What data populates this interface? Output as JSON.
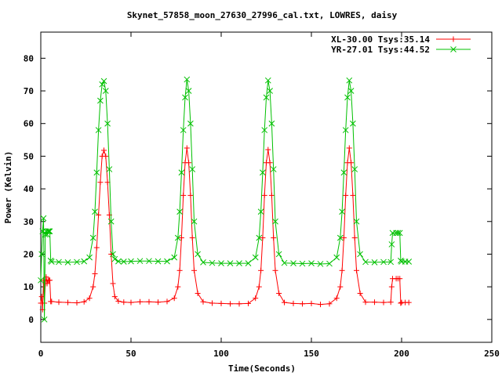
{
  "chart_data": {
    "type": "line",
    "title": "Skynet_57858_moon_27630_27996_cal.txt, LOWRES, daisy",
    "xlabel": "Time(Seconds)",
    "ylabel": "Power (Kelvin)",
    "xlim": [
      0,
      250
    ],
    "ylim": [
      -7,
      88
    ],
    "xticks": [
      0,
      50,
      100,
      150,
      200,
      250
    ],
    "yticks": [
      0,
      10,
      20,
      30,
      40,
      50,
      60,
      70,
      80
    ],
    "grid": false,
    "legend_position": "top-right",
    "series": [
      {
        "name": "XL-30.00 Tsys:35.14",
        "color": "#ff0000",
        "marker": "plus",
        "x": [
          0,
          0.5,
          1,
          1.5,
          2,
          2.5,
          3,
          3.5,
          4,
          4.5,
          5,
          5.5,
          6,
          10,
          15,
          20,
          24,
          27,
          29,
          30,
          31,
          32,
          33,
          34,
          35,
          36,
          37,
          38,
          39,
          40,
          41,
          43,
          46,
          50,
          55,
          60,
          65,
          70,
          74,
          76,
          77,
          78,
          79,
          80,
          81,
          82,
          83,
          84,
          85,
          87,
          90,
          95,
          100,
          105,
          110,
          115,
          119,
          121,
          122,
          123,
          124,
          125,
          126,
          127,
          128,
          129,
          130,
          132,
          135,
          140,
          145,
          150,
          155,
          160,
          164,
          166,
          167,
          168,
          169,
          170,
          171,
          172,
          173,
          174,
          175,
          177,
          180,
          185,
          190,
          194,
          194.5,
          195,
          197,
          198,
          199,
          199.5,
          200,
          202,
          204
        ],
        "values": [
          5,
          7,
          3,
          12,
          5,
          11,
          13,
          11,
          12,
          12,
          12,
          5.5,
          5.5,
          5.3,
          5.2,
          5.1,
          5.4,
          6.5,
          10,
          14,
          22,
          32,
          42,
          50,
          51.8,
          50,
          42,
          32,
          20,
          11,
          7,
          5.6,
          5.3,
          5.2,
          5.4,
          5.4,
          5.3,
          5.5,
          6.5,
          10,
          15,
          25,
          38,
          48,
          52.5,
          48,
          38,
          25,
          15,
          8,
          5.4,
          5,
          4.9,
          4.8,
          4.8,
          4.9,
          6.5,
          10,
          15,
          25,
          38,
          48,
          52,
          48,
          38,
          25,
          15,
          8,
          5.2,
          4.9,
          4.8,
          4.9,
          4.6,
          4.8,
          6.5,
          10,
          15,
          25,
          38,
          48,
          52.5,
          48,
          38,
          25,
          15,
          8,
          5.3,
          5.3,
          5.2,
          5.3,
          10,
          12.5,
          12.5,
          12.5,
          12.5,
          5,
          5.2,
          5.2,
          5.2
        ]
      },
      {
        "name": "YR-27.01 Tsys:44.52",
        "color": "#00c000",
        "marker": "cross",
        "x": [
          0,
          0.5,
          1,
          1.5,
          2,
          2.5,
          3,
          3.5,
          4,
          4.5,
          5,
          5.5,
          6,
          10,
          15,
          20,
          24,
          27,
          29,
          30,
          31,
          32,
          33,
          34,
          35,
          36,
          37,
          38,
          39,
          40,
          41,
          43,
          46,
          50,
          55,
          60,
          65,
          70,
          74,
          76,
          77,
          78,
          79,
          80,
          81,
          82,
          83,
          84,
          85,
          87,
          90,
          95,
          100,
          105,
          110,
          115,
          119,
          121,
          122,
          123,
          124,
          125,
          126,
          127,
          128,
          129,
          130,
          132,
          135,
          140,
          145,
          150,
          155,
          160,
          164,
          166,
          167,
          168,
          169,
          170,
          171,
          172,
          173,
          174,
          175,
          177,
          180,
          185,
          190,
          194,
          194.5,
          195,
          197,
          198,
          199,
          199.5,
          200,
          202,
          204
        ],
        "values": [
          12,
          20,
          27,
          31,
          0,
          26,
          27,
          26,
          27,
          27,
          27,
          18,
          17.7,
          17.6,
          17.5,
          17.6,
          17.8,
          19,
          25,
          33,
          45,
          58,
          67,
          72,
          73,
          70,
          60,
          46,
          30,
          20,
          18.5,
          17.8,
          17.7,
          17.8,
          17.9,
          17.9,
          17.8,
          17.8,
          19,
          25,
          33,
          45,
          58,
          68,
          73.5,
          70,
          60,
          46,
          30,
          20,
          17.5,
          17.3,
          17.2,
          17.2,
          17.2,
          17.2,
          19,
          25,
          33,
          45,
          58,
          68,
          73.2,
          70,
          60,
          46,
          30,
          20,
          17.3,
          17.2,
          17.1,
          17.2,
          17,
          17.1,
          19,
          25,
          33,
          45,
          58,
          68,
          73.2,
          70,
          60,
          46,
          30,
          20,
          17.6,
          17.5,
          17.6,
          17.6,
          23,
          26.5,
          26.5,
          26.5,
          26.5,
          18,
          17.7,
          17.7,
          17.7
        ]
      }
    ]
  }
}
